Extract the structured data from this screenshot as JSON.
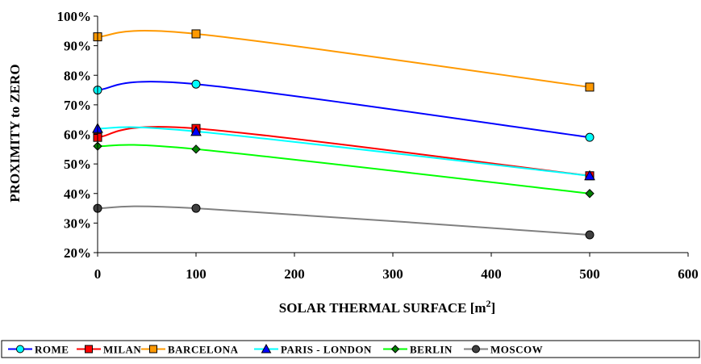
{
  "chart_data": {
    "type": "line",
    "title": "",
    "xlabel": "SOLAR THERMAL SURFACE  [m",
    "xlabel_superscript": "2",
    "xlabel_suffix": "]",
    "ylabel": "PROXIMITY to ZERO",
    "xlim": [
      0,
      600
    ],
    "ylim": [
      20,
      100
    ],
    "x_ticks": [
      0,
      100,
      200,
      300,
      400,
      500,
      600
    ],
    "x_tick_labels": [
      "0",
      "100",
      "200",
      "300",
      "400",
      "500",
      "600"
    ],
    "y_ticks": [
      20,
      30,
      40,
      50,
      60,
      70,
      80,
      90,
      100
    ],
    "y_tick_labels": [
      "20%",
      "30%",
      "40%",
      "50%",
      "60%",
      "70%",
      "80%",
      "90%",
      "100%"
    ],
    "grid": false,
    "smooth": true,
    "legend_position": "bottom",
    "x": [
      0,
      100,
      500
    ],
    "series": [
      {
        "name": "ROME",
        "values": [
          75,
          77,
          59
        ],
        "color": "#0000ff",
        "marker": "circle",
        "marker_color": "#00ffff"
      },
      {
        "name": "MILAN",
        "values": [
          59,
          62,
          46
        ],
        "color": "#ff0000",
        "marker": "square",
        "marker_color": "#ff0000"
      },
      {
        "name": "BARCELONA",
        "values": [
          93,
          94,
          76
        ],
        "color": "#ff9900",
        "marker": "square",
        "marker_color": "#ff9900"
      },
      {
        "name": "PARIS - LONDON",
        "values": [
          62,
          61,
          46
        ],
        "color": "#00ffff",
        "marker": "triangle",
        "marker_color": "#0000ff"
      },
      {
        "name": "BERLIN",
        "values": [
          56,
          55,
          40
        ],
        "color": "#00ff00",
        "marker": "diamond",
        "marker_color": "#008000"
      },
      {
        "name": "MOSCOW",
        "values": [
          35,
          35,
          26
        ],
        "color": "#808080",
        "marker": "circle",
        "marker_color": "#404040"
      }
    ]
  }
}
